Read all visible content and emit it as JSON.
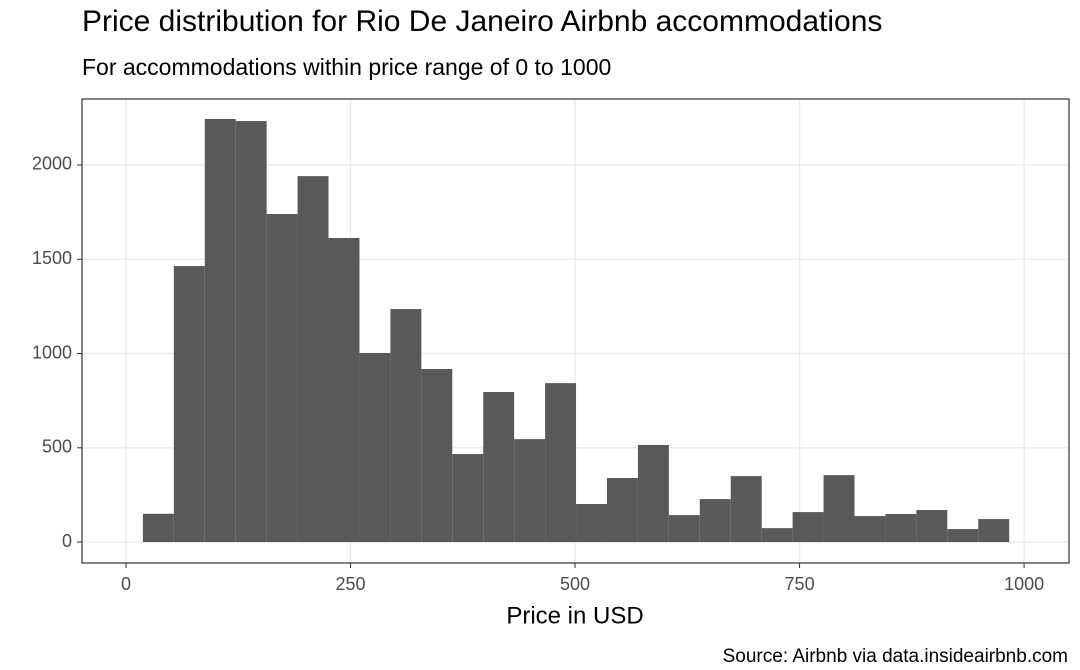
{
  "chart_data": {
    "type": "histogram",
    "title": "Price distribution for Rio De Janeiro Airbnb accommodations",
    "subtitle": "For accommodations within price range of 0 to 1000",
    "x_label": "Price in USD",
    "caption": "Source: Airbnb via data.insideairbnb.com",
    "bins": [
      18.8,
      53.25,
      87.7,
      122.15,
      156.6,
      191.05,
      225.5,
      259.95,
      294.4,
      328.85,
      363.3,
      397.75,
      432.2,
      466.65,
      501.1,
      535.55,
      570,
      604.45,
      638.9,
      673.35,
      707.8,
      742.25,
      776.7,
      811.15,
      845.6,
      880.05,
      914.5,
      948.95,
      983.4
    ],
    "values": [
      150,
      1464,
      2244,
      2233,
      1740,
      1941,
      1613,
      1003,
      1236,
      918,
      467,
      796,
      546,
      843,
      202,
      340,
      515,
      143,
      228,
      350,
      74,
      159,
      355,
      138,
      149,
      170,
      69,
      122
    ],
    "color": "#595959",
    "xlim": [
      -49,
      1050
    ],
    "ylim": [
      -111,
      2350
    ],
    "xticks": [
      0,
      250,
      500,
      750,
      1000
    ],
    "yticks": [
      0,
      500,
      1000,
      1500,
      2000
    ],
    "grid": true
  }
}
